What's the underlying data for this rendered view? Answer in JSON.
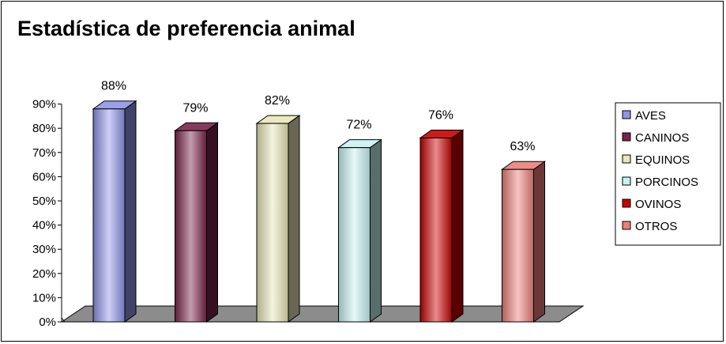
{
  "chart_data": {
    "type": "bar",
    "title": "Estadística de preferencia animal",
    "categories": [
      "AVES",
      "CANINOS",
      "EQUINOS",
      "PORCINOS",
      "OVINOS",
      "OTROS"
    ],
    "values": [
      88,
      79,
      82,
      72,
      76,
      63
    ],
    "data_labels": [
      "88%",
      "79%",
      "82%",
      "72%",
      "76%",
      "63%"
    ],
    "ylim": [
      0,
      90
    ],
    "y_ticks": [
      0,
      10,
      20,
      30,
      40,
      50,
      60,
      70,
      80,
      90
    ],
    "y_tick_labels": [
      "0%",
      "10%",
      "20%",
      "30%",
      "40%",
      "50%",
      "60%",
      "70%",
      "80%",
      "90%"
    ],
    "colors": [
      "#8f94e6",
      "#7a2448",
      "#e9e6b8",
      "#c8f2f2",
      "#c80000",
      "#ec7f7a"
    ],
    "legend": {
      "position": "right",
      "entries": [
        "AVES",
        "CANINOS",
        "EQUINOS",
        "PORCINOS",
        "OVINOS",
        "OTROS"
      ]
    },
    "floor_color": "#8c8c8c",
    "grid": false,
    "style": "3d-column"
  }
}
